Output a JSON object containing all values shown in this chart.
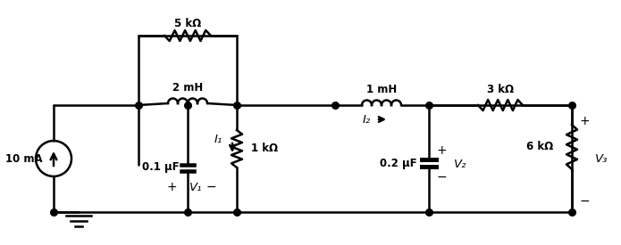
{
  "bg_color": "#ffffff",
  "line_color": "#000000",
  "labels": {
    "current_source": "10 mA",
    "r1": "5 kΩ",
    "l1": "2 mH",
    "c1": "0.1 μF",
    "v1": "V₁",
    "i1": "I₁",
    "r2": "1 kΩ",
    "l2": "1 mH",
    "i2": "I₂",
    "c2": "0.2 μF",
    "v2": "V₂",
    "r3": "3 kΩ",
    "r4": "6 kΩ",
    "v3": "V₃"
  },
  "figsize": [
    6.95,
    2.75
  ],
  "dpi": 100
}
